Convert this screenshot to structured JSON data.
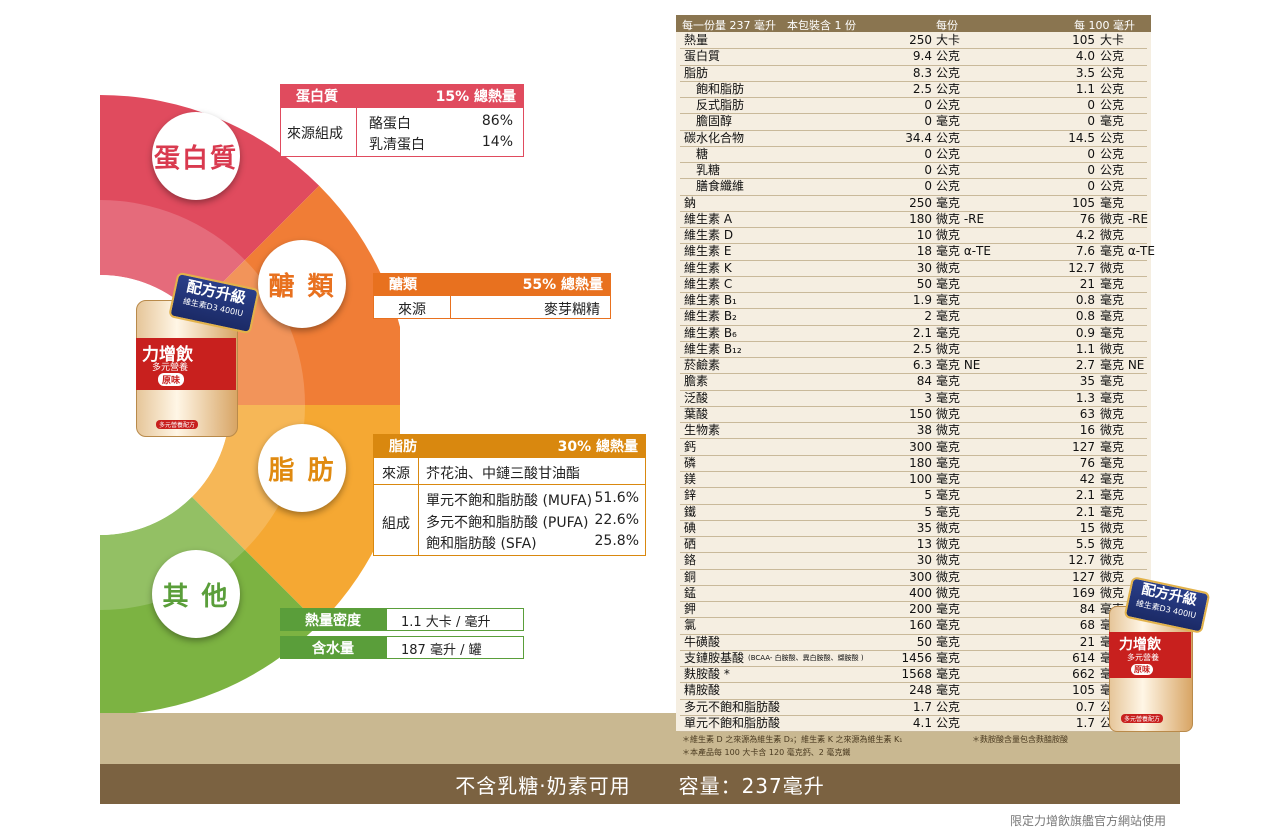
{
  "wheel": {
    "segments": [
      {
        "label": "蛋白質",
        "color": "#e04b5e"
      },
      {
        "label": "醣 類",
        "color": "#f07d36"
      },
      {
        "label": "脂 肪",
        "color": "#f5a833"
      },
      {
        "label": "其 他",
        "color": "#7cb342"
      }
    ]
  },
  "product": {
    "badge_line1": "配方升級",
    "badge_line2": "維生素D3 400IU",
    "brand": "力增飲",
    "subtitle": "多元營養",
    "flavor": "原味",
    "footer": "多元營養配方"
  },
  "protein": {
    "header_label": "蛋白質",
    "header_value": "15% 總熱量",
    "source_label": "來源組成",
    "items": [
      {
        "name": "酪蛋白",
        "value": "86%"
      },
      {
        "name": "乳清蛋白",
        "value": "14%"
      }
    ],
    "color": "#e04b5e"
  },
  "carbs": {
    "header_label": "醣類",
    "header_value": "55% 總熱量",
    "source_label": "來源",
    "source_value": "麥芽糊精",
    "color": "#e8711f"
  },
  "fat": {
    "header_label": "脂肪",
    "header_value": "30% 總熱量",
    "source_label": "來源",
    "source_value": "芥花油、中鏈三酸甘油酯",
    "comp_label": "組成",
    "items": [
      {
        "name": "單元不飽和脂肪酸 (MUFA)",
        "value": "51.6%"
      },
      {
        "name": "多元不飽和脂肪酸 (PUFA)",
        "value": "22.6%"
      },
      {
        "name": "飽和脂肪酸 (SFA)",
        "value": "25.8%"
      }
    ],
    "color": "#d9880f"
  },
  "other": {
    "rows": [
      {
        "label": "熱量密度",
        "value": "1.1 大卡 / 毫升"
      },
      {
        "label": "含水量",
        "value": "187 毫升 / 罐"
      }
    ],
    "color": "#5a9e3a"
  },
  "nutrition": {
    "header_serving": "每一份量 237 毫升　本包裝含 1 份",
    "header_col1": "每份",
    "header_col2": "每 100 毫升",
    "rows": [
      {
        "name": "熱量",
        "v1": "250",
        "u1": "大卡",
        "v2": "105",
        "u2": "大卡"
      },
      {
        "name": "蛋白質",
        "v1": "9.4",
        "u1": "公克",
        "v2": "4.0",
        "u2": "公克"
      },
      {
        "name": "脂肪",
        "v1": "8.3",
        "u1": "公克",
        "v2": "3.5",
        "u2": "公克"
      },
      {
        "name": "　飽和脂肪",
        "v1": "2.5",
        "u1": "公克",
        "v2": "1.1",
        "u2": "公克"
      },
      {
        "name": "　反式脂肪",
        "v1": "0",
        "u1": "公克",
        "v2": "0",
        "u2": "公克"
      },
      {
        "name": "　膽固醇",
        "v1": "0",
        "u1": "毫克",
        "v2": "0",
        "u2": "毫克"
      },
      {
        "name": "碳水化合物",
        "v1": "34.4",
        "u1": "公克",
        "v2": "14.5",
        "u2": "公克"
      },
      {
        "name": "　糖",
        "v1": "0",
        "u1": "公克",
        "v2": "0",
        "u2": "公克"
      },
      {
        "name": "　乳糖",
        "v1": "0",
        "u1": "公克",
        "v2": "0",
        "u2": "公克"
      },
      {
        "name": "　膳食纖維",
        "v1": "0",
        "u1": "公克",
        "v2": "0",
        "u2": "公克"
      },
      {
        "name": "鈉",
        "v1": "250",
        "u1": "毫克",
        "v2": "105",
        "u2": "毫克"
      },
      {
        "name": "維生素 A",
        "v1": "180",
        "u1": "微克 -RE",
        "v2": "76",
        "u2": "微克 -RE"
      },
      {
        "name": "維生素 D",
        "v1": "10",
        "u1": "微克",
        "v2": "4.2",
        "u2": "微克"
      },
      {
        "name": "維生素 E",
        "v1": "18",
        "u1": "毫克 α-TE",
        "v2": "7.6",
        "u2": "毫克 α-TE"
      },
      {
        "name": "維生素 K",
        "v1": "30",
        "u1": "微克",
        "v2": "12.7",
        "u2": "微克"
      },
      {
        "name": "維生素 C",
        "v1": "50",
        "u1": "毫克",
        "v2": "21",
        "u2": "毫克"
      },
      {
        "name": "維生素 B₁",
        "v1": "1.9",
        "u1": "毫克",
        "v2": "0.8",
        "u2": "毫克"
      },
      {
        "name": "維生素 B₂",
        "v1": "2",
        "u1": "毫克",
        "v2": "0.8",
        "u2": "毫克"
      },
      {
        "name": "維生素 B₆",
        "v1": "2.1",
        "u1": "毫克",
        "v2": "0.9",
        "u2": "毫克"
      },
      {
        "name": "維生素 B₁₂",
        "v1": "2.5",
        "u1": "微克",
        "v2": "1.1",
        "u2": "微克"
      },
      {
        "name": "菸鹼素",
        "v1": "6.3",
        "u1": "毫克 NE",
        "v2": "2.7",
        "u2": "毫克 NE"
      },
      {
        "name": "膽素",
        "v1": "84",
        "u1": "毫克",
        "v2": "35",
        "u2": "毫克"
      },
      {
        "name": "泛酸",
        "v1": "3",
        "u1": "毫克",
        "v2": "1.3",
        "u2": "毫克"
      },
      {
        "name": "葉酸",
        "v1": "150",
        "u1": "微克",
        "v2": "63",
        "u2": "微克"
      },
      {
        "name": "生物素",
        "v1": "38",
        "u1": "微克",
        "v2": "16",
        "u2": "微克"
      },
      {
        "name": "鈣",
        "v1": "300",
        "u1": "毫克",
        "v2": "127",
        "u2": "毫克"
      },
      {
        "name": "磷",
        "v1": "180",
        "u1": "毫克",
        "v2": "76",
        "u2": "毫克"
      },
      {
        "name": "鎂",
        "v1": "100",
        "u1": "毫克",
        "v2": "42",
        "u2": "毫克"
      },
      {
        "name": "鋅",
        "v1": "5",
        "u1": "毫克",
        "v2": "2.1",
        "u2": "毫克"
      },
      {
        "name": "鐵",
        "v1": "5",
        "u1": "毫克",
        "v2": "2.1",
        "u2": "毫克"
      },
      {
        "name": "碘",
        "v1": "35",
        "u1": "微克",
        "v2": "15",
        "u2": "微克"
      },
      {
        "name": "硒",
        "v1": "13",
        "u1": "微克",
        "v2": "5.5",
        "u2": "微克"
      },
      {
        "name": "鉻",
        "v1": "30",
        "u1": "微克",
        "v2": "12.7",
        "u2": "微克"
      },
      {
        "name": "銅",
        "v1": "300",
        "u1": "微克",
        "v2": "127",
        "u2": "微克"
      },
      {
        "name": "錳",
        "v1": "400",
        "u1": "微克",
        "v2": "169",
        "u2": "微克"
      },
      {
        "name": "鉀",
        "v1": "200",
        "u1": "毫克",
        "v2": "84",
        "u2": "毫克"
      },
      {
        "name": "氯",
        "v1": "160",
        "u1": "毫克",
        "v2": "68",
        "u2": "毫克"
      },
      {
        "name": "牛磺酸",
        "v1": "50",
        "u1": "毫克",
        "v2": "21",
        "u2": "毫克"
      },
      {
        "name": "支鏈胺基酸",
        "note": "(BCAA- 白胺酸、異白胺酸、纈胺酸 )",
        "v1": "1456",
        "u1": "毫克",
        "v2": "614",
        "u2": "毫克"
      },
      {
        "name": "麩胺酸 *",
        "v1": "1568",
        "u1": "毫克",
        "v2": "662",
        "u2": "毫克"
      },
      {
        "name": "精胺酸",
        "v1": "248",
        "u1": "毫克",
        "v2": "105",
        "u2": "毫克"
      },
      {
        "name": "多元不飽和脂肪酸",
        "v1": "1.7",
        "u1": "公克",
        "v2": "0.7",
        "u2": "公克"
      },
      {
        "name": "單元不飽和脂肪酸",
        "v1": "4.1",
        "u1": "公克",
        "v2": "1.7",
        "u2": "公克"
      }
    ]
  },
  "footnotes": {
    "note1": "＊維生素 D 之來源為維生素 D₃；維生素 K 之來源為維生素 K₁",
    "note2": "＊麩胺酸含量包含麩醯胺酸",
    "note3": "＊本產品每 100 大卡含 120 毫克鈣、2 毫克鐵"
  },
  "bottom": {
    "left_text": "不含乳糖‧奶素可用",
    "right_text": "容量：237毫升"
  },
  "watermark": "限定力增飲旗艦官方網站使用"
}
